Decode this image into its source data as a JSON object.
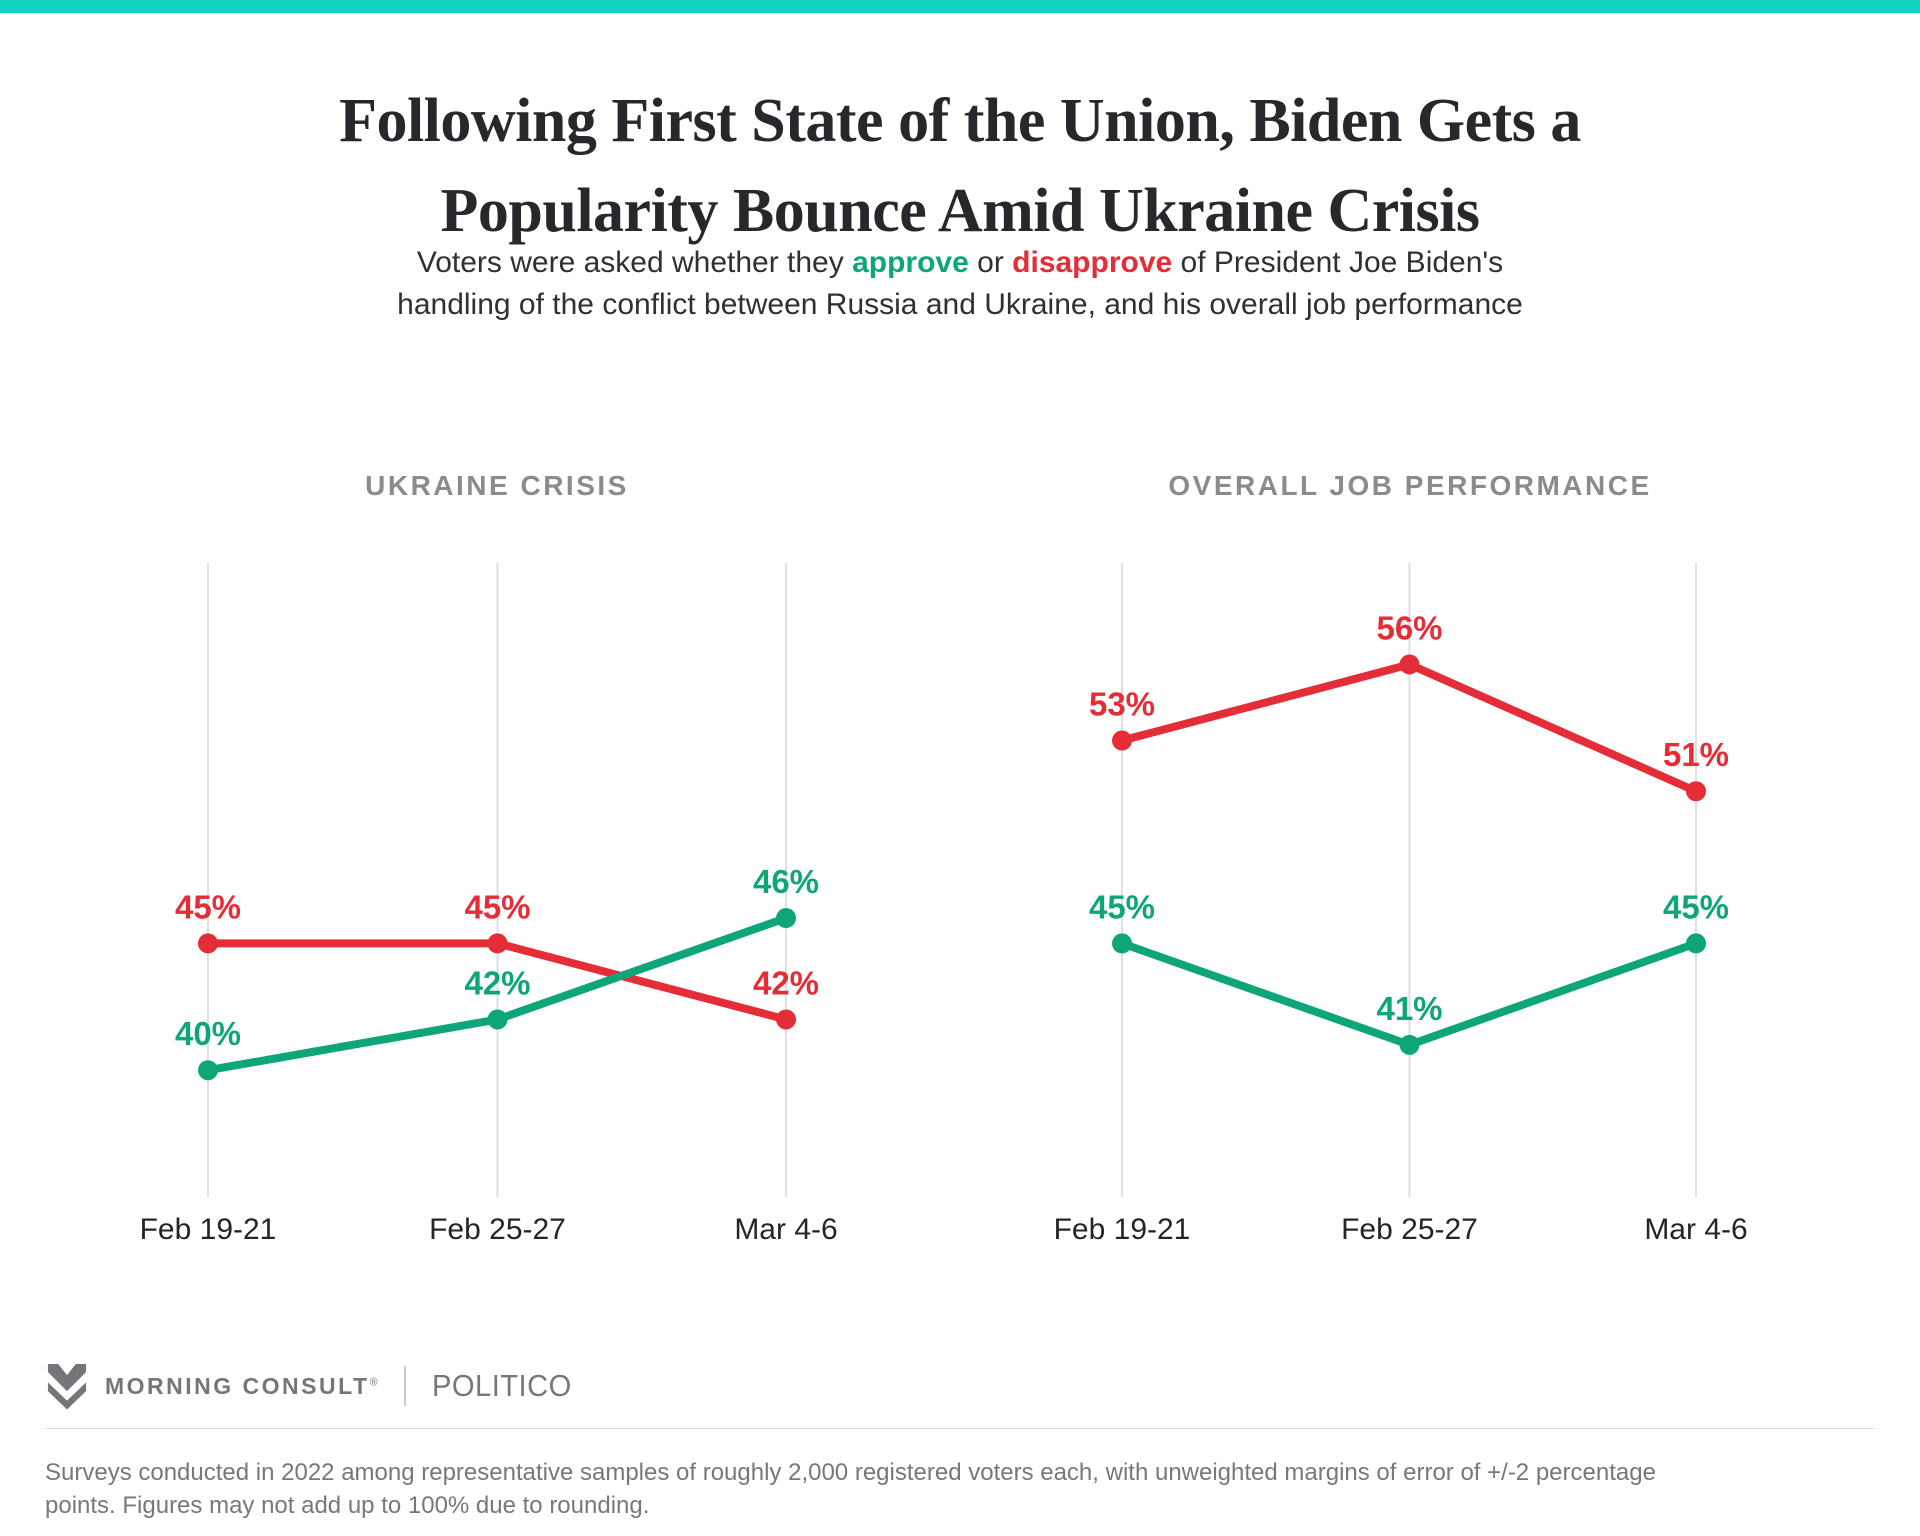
{
  "page": {
    "background": "#FFFFFF",
    "accent_bar_color": "#10D4C4"
  },
  "header": {
    "title_line1": "Following First State of the Union, Biden Gets a",
    "title_line2": "Popularity Bounce Amid Ukraine Crisis",
    "subtitle": {
      "line1_prefix": "Voters were asked whether they ",
      "approve_word": "approve",
      "connector": " or ",
      "disapprove_word": "disapprove",
      "line1_suffix": " of President Joe Biden's",
      "line2": "handling of the conflict between Russia and Ukraine, and his overall job performance"
    }
  },
  "colors": {
    "approve": "#0EA678",
    "disapprove": "#E52D38",
    "gridline": "#DEDFE0",
    "axis_label": "#232528",
    "chart_title": "#8A8B8E"
  },
  "chart_data": [
    {
      "type": "line",
      "title": "UKRAINE CRISIS",
      "categories": [
        "Feb 19-21",
        "Feb 25-27",
        "Mar 4-6"
      ],
      "series": [
        {
          "name": "disapprove",
          "values": [
            45,
            45,
            42
          ]
        },
        {
          "name": "approve",
          "values": [
            40,
            42,
            46
          ]
        }
      ],
      "ylim": [
        35,
        60
      ],
      "grid": "vertical-only",
      "legend": "none",
      "data_labels": "percent"
    },
    {
      "type": "line",
      "title": "OVERALL JOB PERFORMANCE",
      "categories": [
        "Feb 19-21",
        "Feb 25-27",
        "Mar 4-6"
      ],
      "series": [
        {
          "name": "disapprove",
          "values": [
            53,
            56,
            51
          ]
        },
        {
          "name": "approve",
          "values": [
            45,
            41,
            45
          ]
        }
      ],
      "ylim": [
        35,
        60
      ],
      "grid": "vertical-only",
      "legend": "none",
      "data_labels": "percent"
    }
  ],
  "footer": {
    "logo_text": "MORNING CONSULT",
    "registered_mark": "®",
    "partner": "POLITICO",
    "footnote_line1": "Surveys conducted in 2022 among representative samples of roughly 2,000 registered voters each, with unweighted margins of error of +/-2 percentage",
    "footnote_line2": "points. Figures may not add up to 100% due to rounding."
  }
}
